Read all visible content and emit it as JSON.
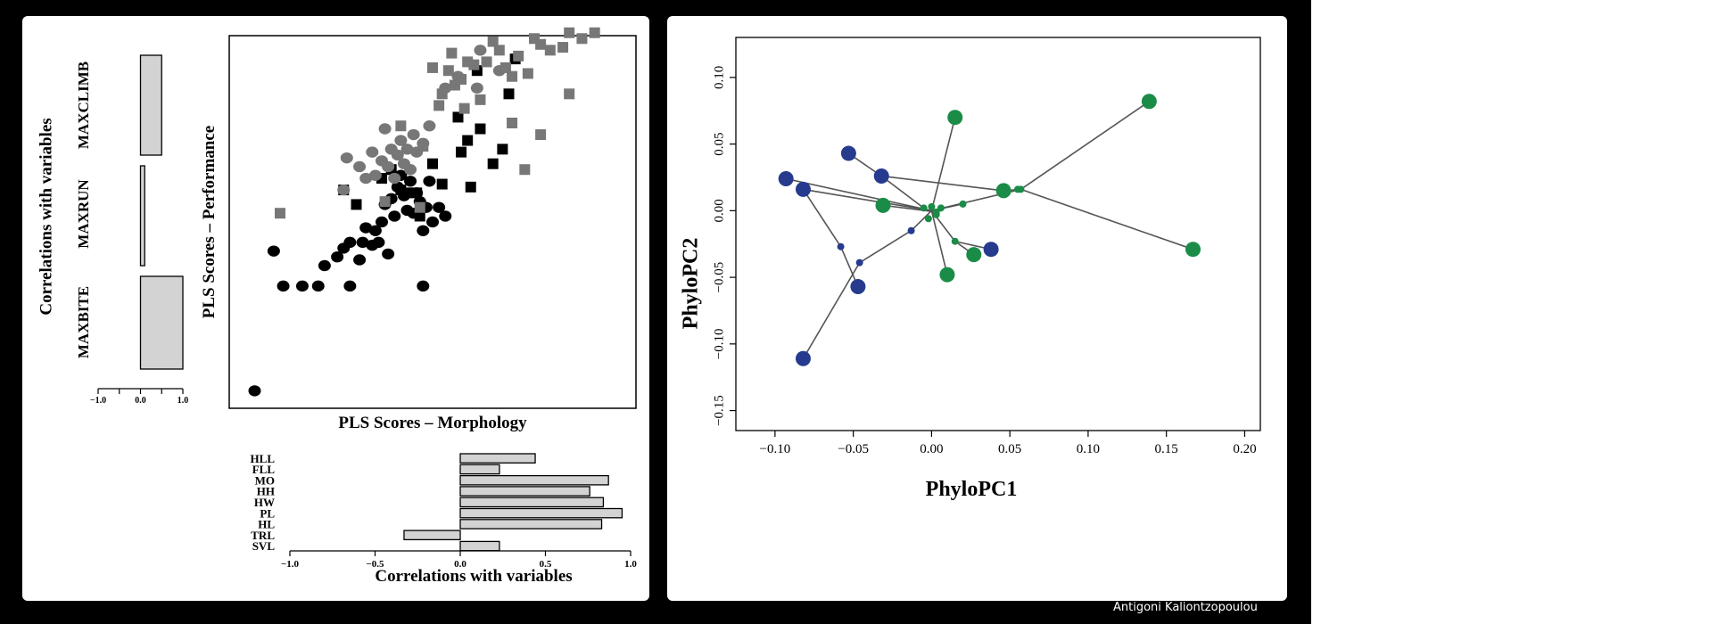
{
  "credit": "Antigoni Kaliontzopoulou",
  "chart_data": [
    {
      "type": "scatter",
      "xlabel": "PLS Scores – Morphology",
      "ylabel": "PLS Scores – Performance",
      "xlim": [
        -3.0,
        3.4
      ],
      "ylim": [
        -3.4,
        3.0
      ],
      "axes_ticks": false,
      "series": [
        {
          "color": "#000000",
          "marker": "circle",
          "points": [
            [
              -2.6,
              -3.1
            ],
            [
              -2.3,
              -0.7
            ],
            [
              -2.15,
              -1.3
            ],
            [
              -1.85,
              -1.3
            ],
            [
              -1.6,
              -1.3
            ],
            [
              -1.5,
              -0.95
            ],
            [
              -1.3,
              -0.8
            ],
            [
              -1.2,
              -0.65
            ],
            [
              -1.1,
              -0.55
            ],
            [
              -1.1,
              -1.3
            ],
            [
              -0.95,
              -0.85
            ],
            [
              -0.9,
              -0.55
            ],
            [
              -0.85,
              -0.3
            ],
            [
              -0.75,
              -0.6
            ],
            [
              -0.7,
              -0.35
            ],
            [
              -0.65,
              -0.55
            ],
            [
              -0.6,
              -0.2
            ],
            [
              -0.55,
              0.1
            ],
            [
              -0.5,
              -0.75
            ],
            [
              -0.45,
              0.2
            ],
            [
              -0.4,
              -0.1
            ],
            [
              -0.35,
              0.4
            ],
            [
              -0.3,
              0.6
            ],
            [
              -0.25,
              0.25
            ],
            [
              -0.2,
              0.0
            ],
            [
              -0.15,
              0.5
            ],
            [
              -0.1,
              -0.05
            ],
            [
              -0.05,
              0.3
            ],
            [
              0.0,
              0.15
            ],
            [
              0.05,
              -0.35
            ],
            [
              0.1,
              0.05
            ],
            [
              0.15,
              0.5
            ],
            [
              0.2,
              -0.2
            ],
            [
              0.3,
              0.05
            ],
            [
              0.4,
              -0.1
            ],
            [
              0.05,
              -1.3
            ]
          ]
        },
        {
          "color": "#000000",
          "marker": "square",
          "points": [
            [
              -1.2,
              0.35
            ],
            [
              -1.0,
              0.1
            ],
            [
              -0.6,
              0.55
            ],
            [
              -0.45,
              0.7
            ],
            [
              -0.3,
              0.35
            ],
            [
              -0.2,
              0.3
            ],
            [
              -0.05,
              0.3
            ],
            [
              0.0,
              -0.1
            ],
            [
              0.2,
              0.8
            ],
            [
              0.35,
              0.45
            ],
            [
              0.6,
              1.6
            ],
            [
              0.65,
              1.0
            ],
            [
              0.75,
              1.2
            ],
            [
              0.8,
              0.4
            ],
            [
              0.95,
              1.4
            ],
            [
              1.15,
              0.8
            ],
            [
              1.3,
              1.05
            ],
            [
              0.9,
              2.4
            ],
            [
              1.4,
              2.0
            ],
            [
              1.5,
              2.6
            ]
          ]
        },
        {
          "color": "#777777",
          "marker": "circle",
          "points": [
            [
              -1.2,
              0.35
            ],
            [
              -1.15,
              0.9
            ],
            [
              -0.95,
              0.75
            ],
            [
              -0.85,
              0.55
            ],
            [
              -0.75,
              1.0
            ],
            [
              -0.7,
              0.6
            ],
            [
              -0.6,
              0.85
            ],
            [
              -0.55,
              1.4
            ],
            [
              -0.5,
              0.75
            ],
            [
              -0.45,
              1.05
            ],
            [
              -0.4,
              0.55
            ],
            [
              -0.35,
              0.95
            ],
            [
              -0.3,
              1.2
            ],
            [
              -0.25,
              0.8
            ],
            [
              -0.2,
              1.05
            ],
            [
              -0.15,
              0.7
            ],
            [
              -0.1,
              1.3
            ],
            [
              -0.05,
              1.0
            ],
            [
              0.05,
              1.15
            ],
            [
              0.15,
              1.45
            ],
            [
              0.4,
              2.1
            ],
            [
              0.6,
              2.3
            ],
            [
              0.9,
              2.1
            ],
            [
              0.95,
              2.75
            ],
            [
              1.25,
              2.4
            ]
          ]
        },
        {
          "color": "#777777",
          "marker": "square",
          "points": [
            [
              -2.2,
              -0.05
            ],
            [
              -0.55,
              0.15
            ],
            [
              -0.3,
              1.45
            ],
            [
              0.0,
              0.05
            ],
            [
              0.05,
              1.1
            ],
            [
              0.3,
              1.8
            ],
            [
              0.35,
              2.0
            ],
            [
              0.45,
              2.4
            ],
            [
              0.5,
              2.7
            ],
            [
              0.55,
              2.15
            ],
            [
              0.65,
              2.25
            ],
            [
              0.7,
              1.75
            ],
            [
              0.75,
              2.55
            ],
            [
              0.85,
              2.5
            ],
            [
              0.95,
              1.9
            ],
            [
              1.05,
              2.55
            ],
            [
              1.15,
              2.9
            ],
            [
              1.25,
              2.75
            ],
            [
              1.35,
              2.45
            ],
            [
              1.45,
              2.3
            ],
            [
              1.55,
              2.65
            ],
            [
              1.7,
              2.35
            ],
            [
              1.8,
              2.95
            ],
            [
              1.9,
              2.85
            ],
            [
              2.05,
              2.75
            ],
            [
              2.25,
              2.8
            ],
            [
              2.35,
              3.05
            ],
            [
              2.55,
              2.95
            ],
            [
              2.75,
              3.05
            ],
            [
              1.45,
              1.5
            ],
            [
              1.9,
              1.3
            ],
            [
              2.35,
              2.0
            ],
            [
              0.2,
              2.45
            ],
            [
              1.65,
              0.7
            ]
          ]
        }
      ]
    },
    {
      "type": "bar",
      "orientation": "horizontal",
      "categories": [
        "HLL",
        "FLL",
        "MO",
        "HH",
        "HW",
        "PL",
        "HL",
        "TRL",
        "SVL"
      ],
      "values": [
        0.44,
        0.23,
        0.87,
        0.76,
        0.84,
        0.95,
        0.83,
        -0.33,
        0.23
      ],
      "xlabel": "Correlations with variables",
      "xlim": [
        -1.0,
        1.0
      ],
      "ticks": [
        "−1.0",
        "−0.5",
        "0.0",
        "0.5",
        "1.0"
      ],
      "fill": "#d3d3d3"
    },
    {
      "type": "bar",
      "orientation": "vertical",
      "categories": [
        "MAXBITE",
        "MAXRUN",
        "MAXCLIMB"
      ],
      "values": [
        1.0,
        0.1,
        0.5
      ],
      "ylabel": "Correlations with variables",
      "ylim": [
        -1.0,
        1.0
      ],
      "ticks": [
        "−1.0",
        "0.0",
        "1.0"
      ],
      "fill": "#d3d3d3"
    },
    {
      "type": "scatter",
      "xlabel": "PhyloPC1",
      "ylabel": "PhyloPC2",
      "xlim": [
        -0.125,
        0.21
      ],
      "ylim": [
        -0.165,
        0.13
      ],
      "xticks": [
        "−0.10",
        "−0.05",
        "0.00",
        "0.05",
        "0.10",
        "0.15",
        "0.20"
      ],
      "xtick_values": [
        -0.1,
        -0.05,
        0.0,
        0.05,
        0.1,
        0.15,
        0.2
      ],
      "yticks": [
        "−0.15",
        "−0.10",
        "−0.05",
        "0.00",
        "0.05",
        "0.10"
      ],
      "ytick_values": [
        -0.15,
        -0.1,
        -0.05,
        0.0,
        0.05,
        0.1
      ],
      "line_color": "#555555",
      "series": [
        {
          "color": "#263b8e",
          "size": "large",
          "points": [
            [
              -0.093,
              0.024
            ],
            [
              -0.082,
              0.016
            ],
            [
              -0.053,
              0.043
            ],
            [
              -0.032,
              0.026
            ],
            [
              -0.047,
              -0.057
            ],
            [
              -0.082,
              -0.111
            ],
            [
              0.038,
              -0.029
            ]
          ]
        },
        {
          "color": "#1a8c47",
          "size": "large",
          "points": [
            [
              0.015,
              0.07
            ],
            [
              0.139,
              0.082
            ],
            [
              0.046,
              0.015
            ],
            [
              0.167,
              -0.029
            ],
            [
              -0.031,
              0.004
            ],
            [
              0.027,
              -0.033
            ],
            [
              0.01,
              -0.048
            ]
          ]
        },
        {
          "color": "#263b8e",
          "size": "small",
          "points": [
            [
              -0.058,
              -0.027
            ],
            [
              -0.046,
              -0.039
            ],
            [
              -0.013,
              -0.015
            ]
          ]
        },
        {
          "color": "#1a8c47",
          "size": "small",
          "points": [
            [
              -0.005,
              0.002
            ],
            [
              0.0,
              0.003
            ],
            [
              0.003,
              -0.001
            ],
            [
              0.006,
              0.002
            ],
            [
              0.02,
              0.005
            ],
            [
              0.015,
              -0.023
            ],
            [
              -0.002,
              -0.006
            ],
            [
              0.003,
              -0.003
            ],
            [
              0.055,
              0.016
            ],
            [
              0.057,
              0.016
            ]
          ]
        }
      ],
      "edges": [
        [
          [
            0.0,
            0.0
          ],
          [
            -0.093,
            0.024
          ]
        ],
        [
          [
            -0.005,
            0.002
          ],
          [
            -0.032,
            0.026
          ]
        ],
        [
          [
            0.0,
            0.0
          ],
          [
            -0.082,
            0.016
          ]
        ],
        [
          [
            -0.032,
            0.026
          ],
          [
            -0.053,
            0.043
          ]
        ],
        [
          [
            0.003,
            -0.001
          ],
          [
            -0.031,
            0.004
          ]
        ],
        [
          [
            -0.013,
            -0.015
          ],
          [
            -0.046,
            -0.039
          ]
        ],
        [
          [
            0.0,
            0.0
          ],
          [
            -0.013,
            -0.015
          ]
        ],
        [
          [
            -0.046,
            -0.039
          ],
          [
            -0.082,
            -0.111
          ]
        ],
        [
          [
            -0.058,
            -0.027
          ],
          [
            -0.047,
            -0.057
          ]
        ],
        [
          [
            -0.082,
            0.016
          ],
          [
            -0.058,
            -0.027
          ]
        ],
        [
          [
            0.0,
            0.0
          ],
          [
            0.015,
            0.07
          ]
        ],
        [
          [
            -0.032,
            0.026
          ],
          [
            0.046,
            0.015
          ]
        ],
        [
          [
            0.046,
            0.015
          ],
          [
            0.057,
            0.016
          ]
        ],
        [
          [
            0.057,
            0.016
          ],
          [
            0.139,
            0.082
          ]
        ],
        [
          [
            0.057,
            0.016
          ],
          [
            0.167,
            -0.029
          ]
        ],
        [
          [
            0.0,
            0.0
          ],
          [
            0.057,
            0.016
          ]
        ],
        [
          [
            0.0,
            0.0
          ],
          [
            0.01,
            -0.048
          ]
        ],
        [
          [
            0.015,
            -0.023
          ],
          [
            0.038,
            -0.029
          ]
        ],
        [
          [
            0.015,
            -0.023
          ],
          [
            0.027,
            -0.033
          ]
        ],
        [
          [
            0.0,
            0.0
          ],
          [
            0.015,
            -0.023
          ]
        ],
        [
          [
            0.0,
            0.0
          ],
          [
            0.02,
            0.005
          ]
        ]
      ]
    }
  ]
}
